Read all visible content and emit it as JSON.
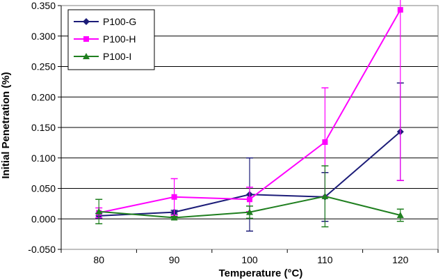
{
  "chart_data": {
    "type": "line",
    "title": "",
    "xlabel": "Temperature (°C)",
    "ylabel": "Initial Penetration (%)",
    "categories": [
      "80",
      "90",
      "100",
      "110",
      "120"
    ],
    "ylim": [
      -0.05,
      0.35
    ],
    "yticks": [
      "-0.050",
      "0.000",
      "0.050",
      "0.100",
      "0.150",
      "0.200",
      "0.250",
      "0.300",
      "0.350"
    ],
    "ytick_values": [
      -0.05,
      0,
      0.05,
      0.1,
      0.15,
      0.2,
      0.25,
      0.3,
      0.35
    ],
    "grid": true,
    "legend_position": "top-left",
    "series": [
      {
        "name": "P100-G",
        "color": "#1c1c78",
        "marker": "diamond",
        "values": [
          0.005,
          0.011,
          0.04,
          0.036,
          0.143
        ],
        "error": [
          0.004,
          0.003,
          0.06,
          0.04,
          0.08
        ]
      },
      {
        "name": "P100-H",
        "color": "#ff00ff",
        "marker": "square",
        "values": [
          0.01,
          0.036,
          0.032,
          0.126,
          0.343
        ],
        "error": [
          0.008,
          0.03,
          0.02,
          0.089,
          0.28
        ]
      },
      {
        "name": "P100-I",
        "color": "#1f7f1f",
        "marker": "triangle",
        "values": [
          0.012,
          0.002,
          0.011,
          0.037,
          0.006
        ],
        "error": [
          0.02,
          0.002,
          0.01,
          0.05,
          0.01
        ]
      }
    ]
  }
}
